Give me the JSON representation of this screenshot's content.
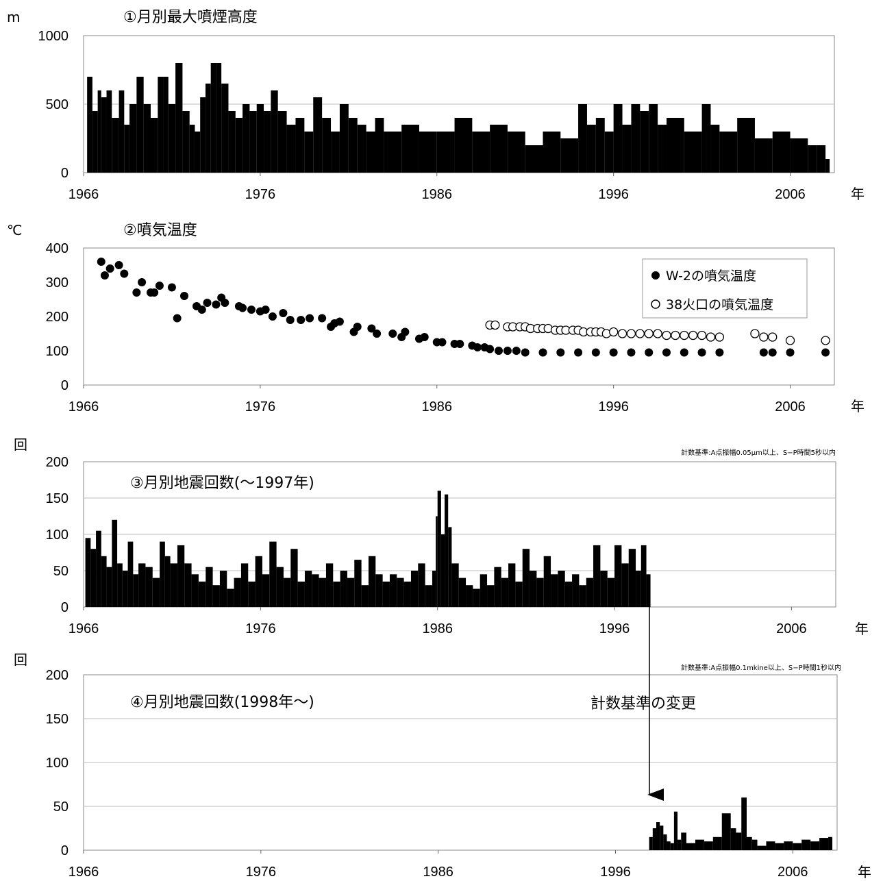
{
  "chart_data": [
    {
      "type": "bar",
      "title": "①月別最大噴煙高度",
      "unit": "m",
      "x_unit": "年",
      "xlim": [
        1966,
        2008.5
      ],
      "ylim": [
        0,
        1000
      ],
      "x_ticks": [
        "1966",
        "1976",
        "1986",
        "1996",
        "2006"
      ],
      "y_ticks": [
        "0",
        "500",
        "1000"
      ],
      "grid": true,
      "series": [
        {
          "x": [
            1966.2,
            1966.5,
            1966.8,
            1967.0,
            1967.3,
            1967.6,
            1968.0,
            1968.3,
            1968.6,
            1969.0,
            1969.4,
            1969.8,
            1970.2,
            1970.5,
            1970.8,
            1971.2,
            1971.6,
            1972.0,
            1972.3,
            1972.6,
            1972.9,
            1973.2,
            1973.5,
            1973.8,
            1974.2,
            1974.6,
            1975.0,
            1975.4,
            1975.8,
            1976.2,
            1976.6,
            1977.0,
            1977.5,
            1978.0,
            1978.5,
            1979.0,
            1979.5,
            1980.0,
            1980.5,
            1981.0,
            1981.5,
            1982.0,
            1982.5,
            1983.0,
            1984.0,
            1985.0,
            1986.0,
            1987.0,
            1988.0,
            1989.0,
            1990.0,
            1991.0,
            1992.0,
            1993.0,
            1994.0,
            1994.5,
            1995.0,
            1995.5,
            1996.0,
            1996.5,
            1997.0,
            1997.5,
            1998.0,
            1998.5,
            1999.0,
            2000.0,
            2001.0,
            2001.5,
            2002.0,
            2003.0,
            2004.0,
            2005.0,
            2006.0,
            2007.0,
            2007.5,
            2008.0
          ],
          "values": [
            700,
            450,
            600,
            550,
            600,
            400,
            600,
            350,
            500,
            700,
            500,
            400,
            700,
            700,
            500,
            800,
            450,
            350,
            300,
            550,
            650,
            800,
            800,
            650,
            450,
            400,
            500,
            450,
            500,
            450,
            600,
            450,
            350,
            400,
            300,
            550,
            400,
            300,
            500,
            400,
            350,
            300,
            400,
            300,
            350,
            300,
            300,
            400,
            300,
            350,
            300,
            200,
            300,
            250,
            500,
            350,
            400,
            300,
            500,
            350,
            500,
            450,
            500,
            350,
            400,
            300,
            500,
            350,
            300,
            400,
            250,
            300,
            250,
            200,
            200,
            100
          ]
        }
      ]
    },
    {
      "type": "scatter",
      "title": "②噴気温度",
      "unit": "℃",
      "x_unit": "年",
      "xlim": [
        1966,
        2008.5
      ],
      "ylim": [
        0,
        400
      ],
      "x_ticks": [
        "1966",
        "1976",
        "1986",
        "1996",
        "2006"
      ],
      "y_ticks": [
        "0",
        "100",
        "200",
        "300",
        "400"
      ],
      "grid": false,
      "legend_position": "top-right",
      "series": [
        {
          "name": "W-2の噴気温度",
          "marker": "filled",
          "x": [
            1967.0,
            1967.2,
            1967.5,
            1968.0,
            1968.3,
            1969.0,
            1969.3,
            1969.8,
            1970.0,
            1970.3,
            1971.0,
            1971.3,
            1971.7,
            1972.4,
            1972.7,
            1973.0,
            1973.5,
            1973.8,
            1974.0,
            1974.8,
            1975.0,
            1975.5,
            1976.0,
            1976.3,
            1976.7,
            1977.3,
            1977.7,
            1978.3,
            1978.8,
            1979.5,
            1980.0,
            1980.2,
            1980.5,
            1981.3,
            1981.5,
            1982.3,
            1982.6,
            1983.5,
            1984.0,
            1984.2,
            1985.0,
            1985.3,
            1986.0,
            1986.3,
            1987.0,
            1987.3,
            1988.0,
            1988.3,
            1988.7,
            1989.0,
            1989.5,
            1990.0,
            1990.5,
            1991.0,
            1992.0,
            1993.0,
            1994.0,
            1995.0,
            1996.0,
            1997.0,
            1998.0,
            1999.0,
            2000.0,
            2001.0,
            2002.0,
            2004.5,
            2005.0,
            2006.0,
            2008.0
          ],
          "values": [
            360,
            320,
            340,
            350,
            325,
            270,
            300,
            270,
            270,
            290,
            285,
            195,
            260,
            230,
            220,
            240,
            235,
            255,
            240,
            230,
            225,
            220,
            215,
            220,
            200,
            210,
            190,
            190,
            195,
            195,
            170,
            180,
            185,
            155,
            170,
            165,
            150,
            150,
            140,
            155,
            135,
            140,
            125,
            125,
            120,
            120,
            115,
            110,
            110,
            105,
            100,
            100,
            100,
            95,
            95,
            95,
            95,
            95,
            95,
            95,
            95,
            95,
            95,
            95,
            95,
            95,
            95,
            95,
            95
          ]
        },
        {
          "name": "38火口の噴気温度",
          "marker": "open",
          "x": [
            1989.0,
            1989.3,
            1990.0,
            1990.3,
            1990.7,
            1991.0,
            1991.3,
            1991.7,
            1992.0,
            1992.3,
            1992.7,
            1993.0,
            1993.3,
            1993.7,
            1994.0,
            1994.3,
            1994.7,
            1995.0,
            1995.3,
            1995.6,
            1996.0,
            1996.5,
            1997.0,
            1997.5,
            1998.0,
            1998.5,
            1999.0,
            1999.5,
            2000.0,
            2000.5,
            2001.0,
            2001.5,
            2002.0,
            2004.0,
            2004.5,
            2005.0,
            2006.0,
            2008.0
          ],
          "values": [
            175,
            175,
            170,
            170,
            170,
            170,
            165,
            165,
            165,
            165,
            160,
            160,
            160,
            160,
            160,
            155,
            155,
            155,
            155,
            150,
            155,
            150,
            150,
            150,
            150,
            150,
            145,
            145,
            145,
            145,
            145,
            140,
            140,
            150,
            140,
            140,
            130,
            130
          ]
        }
      ]
    },
    {
      "type": "bar",
      "title": "③月別地震回数(〜1997年)",
      "unit": "回",
      "x_unit": "年",
      "note": "計数基準:A点振幅0.05μm以上、S−P時間5秒以内",
      "xlim": [
        1966,
        2008.5
      ],
      "ylim": [
        0,
        200
      ],
      "x_ticks": [
        "1966",
        "1976",
        "1986",
        "1996",
        "2006"
      ],
      "y_ticks": [
        "0",
        "50",
        "100",
        "150",
        "200"
      ],
      "grid": true,
      "series": [
        {
          "x": [
            1966.1,
            1966.4,
            1966.7,
            1967.0,
            1967.3,
            1967.6,
            1967.9,
            1968.2,
            1968.5,
            1968.8,
            1969.1,
            1969.5,
            1969.9,
            1970.3,
            1970.6,
            1970.9,
            1971.3,
            1971.7,
            1972.1,
            1972.5,
            1972.9,
            1973.3,
            1973.7,
            1974.1,
            1974.5,
            1974.9,
            1975.3,
            1975.7,
            1976.1,
            1976.5,
            1976.9,
            1977.3,
            1977.7,
            1978.1,
            1978.5,
            1978.9,
            1979.3,
            1979.7,
            1980.1,
            1980.5,
            1980.9,
            1981.3,
            1981.7,
            1982.1,
            1982.5,
            1982.9,
            1983.3,
            1983.7,
            1984.1,
            1984.5,
            1984.9,
            1985.3,
            1985.7,
            1985.9,
            1986.0,
            1986.2,
            1986.4,
            1986.6,
            1986.8,
            1987.2,
            1987.6,
            1988.0,
            1988.4,
            1988.8,
            1989.2,
            1989.6,
            1990.0,
            1990.4,
            1990.8,
            1991.2,
            1991.6,
            1992.0,
            1992.4,
            1992.8,
            1993.2,
            1993.6,
            1994.0,
            1994.4,
            1994.8,
            1995.2,
            1995.6,
            1996.0,
            1996.4,
            1996.8,
            1997.2,
            1997.5,
            1997.8
          ],
          "values": [
            95,
            80,
            105,
            70,
            55,
            120,
            60,
            50,
            90,
            45,
            60,
            55,
            40,
            90,
            70,
            60,
            85,
            60,
            45,
            35,
            55,
            30,
            50,
            25,
            40,
            60,
            35,
            70,
            45,
            90,
            55,
            40,
            80,
            35,
            50,
            45,
            40,
            60,
            35,
            50,
            40,
            65,
            30,
            70,
            45,
            35,
            45,
            40,
            35,
            50,
            60,
            30,
            50,
            125,
            160,
            100,
            155,
            110,
            60,
            40,
            30,
            25,
            45,
            30,
            55,
            40,
            60,
            35,
            80,
            50,
            40,
            70,
            45,
            50,
            35,
            45,
            30,
            40,
            85,
            50,
            40,
            85,
            60,
            80,
            50,
            85,
            45
          ]
        }
      ]
    },
    {
      "type": "bar",
      "title": "④月別地震回数(1998年〜)",
      "unit": "回",
      "x_unit": "年",
      "note": "計数基準:A点振幅0.1mkine以上、S−P時間1秒以内",
      "annotation": "計数基準の変更",
      "xlim": [
        1966,
        2008.5
      ],
      "ylim": [
        0,
        200
      ],
      "x_ticks": [
        "1966",
        "1976",
        "1986",
        "1996",
        "2006"
      ],
      "y_ticks": [
        "0",
        "50",
        "100",
        "150",
        "200"
      ],
      "grid": true,
      "series": [
        {
          "x": [
            1997.9,
            1998.1,
            1998.3,
            1998.5,
            1998.7,
            1998.9,
            1999.1,
            1999.3,
            1999.5,
            1999.7,
            2000.0,
            2000.5,
            2001.0,
            2001.5,
            2002.0,
            2002.5,
            2002.8,
            2003.1,
            2003.4,
            2003.7,
            2004.0,
            2004.5,
            2005.0,
            2005.5,
            2006.0,
            2006.5,
            2007.0,
            2007.5,
            2008.0
          ],
          "values": [
            15,
            25,
            32,
            28,
            18,
            10,
            8,
            44,
            12,
            20,
            8,
            12,
            10,
            15,
            42,
            25,
            20,
            60,
            15,
            12,
            5,
            10,
            8,
            10,
            8,
            12,
            10,
            14,
            15
          ]
        }
      ]
    }
  ]
}
